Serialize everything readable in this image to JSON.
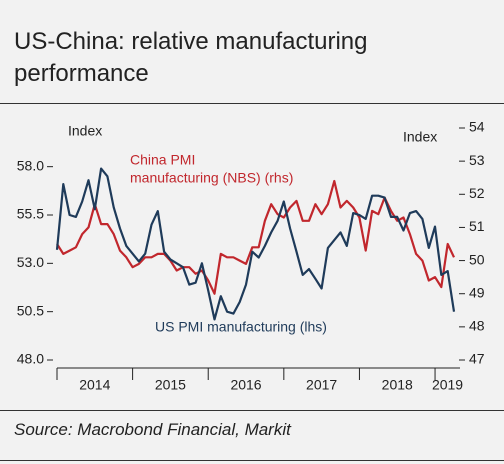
{
  "chart_data": {
    "type": "line",
    "title": "US-China: relative manufacturing performance",
    "source": "Source: Macrobond Financial, Markit",
    "y_label": "Index",
    "y2_label": "Index",
    "x": [
      2014,
      2014.083,
      2014.167,
      2014.25,
      2014.333,
      2014.417,
      2014.5,
      2014.583,
      2014.667,
      2014.75,
      2014.833,
      2014.917,
      2015,
      2015.083,
      2015.167,
      2015.25,
      2015.333,
      2015.417,
      2015.5,
      2015.583,
      2015.667,
      2015.75,
      2015.833,
      2015.917,
      2016,
      2016.083,
      2016.167,
      2016.25,
      2016.333,
      2016.417,
      2016.5,
      2016.583,
      2016.667,
      2016.75,
      2016.833,
      2016.917,
      2017,
      2017.083,
      2017.167,
      2017.25,
      2017.333,
      2017.417,
      2017.5,
      2017.583,
      2017.667,
      2017.75,
      2017.833,
      2017.917,
      2018,
      2018.083,
      2018.167,
      2018.25,
      2018.333,
      2018.417,
      2018.5,
      2018.583,
      2018.667,
      2018.75,
      2018.833,
      2018.917,
      2019,
      2019.083,
      2019.167,
      2019.25
    ],
    "series": [
      {
        "name": "US PMI manufacturing (lhs)",
        "color": "#1f3b5a",
        "axis": "y",
        "values": [
          53.7,
          57.1,
          55.5,
          55.4,
          56.2,
          57.3,
          55.8,
          57.9,
          57.5,
          55.9,
          54.8,
          53.9,
          53.5,
          53.1,
          53.5,
          55.0,
          55.7,
          53.6,
          53.2,
          53.0,
          52.8,
          51.9,
          52.0,
          53.0,
          51.6,
          50.1,
          51.3,
          50.5,
          50.4,
          51.0,
          51.9,
          53.6,
          53.3,
          53.9,
          54.6,
          55.2,
          56.2,
          54.8,
          53.6,
          52.4,
          52.7,
          52.2,
          51.7,
          53.8,
          54.2,
          54.6,
          53.9,
          55.6,
          55.5,
          55.3,
          56.5,
          56.5,
          56.4,
          55.4,
          55.4,
          54.7,
          55.6,
          55.7,
          55.3,
          53.8,
          54.9,
          52.4,
          52.6,
          50.5
        ]
      },
      {
        "name": "China PMI manufacturing (NBS) (rhs)",
        "color": "#c1272d",
        "axis": "y2",
        "values": [
          50.5,
          50.2,
          50.3,
          50.4,
          50.8,
          51.0,
          51.7,
          51.1,
          51.1,
          50.8,
          50.3,
          50.1,
          49.8,
          49.9,
          50.1,
          50.1,
          50.2,
          50.2,
          50.0,
          49.7,
          49.8,
          49.8,
          49.6,
          49.7,
          49.4,
          49.0,
          50.2,
          50.1,
          50.1,
          50.0,
          49.9,
          50.4,
          50.4,
          51.2,
          51.7,
          51.4,
          51.3,
          51.6,
          51.8,
          51.2,
          51.2,
          51.7,
          51.4,
          51.7,
          52.4,
          51.6,
          51.8,
          51.6,
          51.3,
          50.3,
          51.5,
          51.4,
          51.9,
          51.5,
          51.2,
          51.3,
          50.8,
          50.2,
          50.0,
          49.4,
          49.5,
          49.2,
          50.5,
          50.1
        ]
      }
    ],
    "annotations": [
      {
        "text": "China PMI",
        "color": "#c1272d"
      },
      {
        "text": "manufacturing (NBS) (rhs)",
        "color": "#c1272d"
      },
      {
        "text": "US PMI manufacturing (lhs)",
        "color": "#1f3b5a"
      }
    ],
    "xlim": [
      2014,
      2019.33
    ],
    "xticks": [
      2014,
      2015,
      2016,
      2017,
      2018,
      2019
    ],
    "ylim": [
      48,
      60
    ],
    "yticks": [
      {
        "value": 48,
        "label": "48.0"
      },
      {
        "value": 50.5,
        "label": "50.5"
      },
      {
        "value": 53,
        "label": "53.0"
      },
      {
        "value": 55.5,
        "label": "55.5"
      },
      {
        "value": 58,
        "label": "58.0"
      }
    ],
    "y2lim": [
      47,
      54
    ],
    "y2ticks": [
      47,
      48,
      49,
      50,
      51,
      52,
      53,
      54
    ],
    "grid": false
  }
}
